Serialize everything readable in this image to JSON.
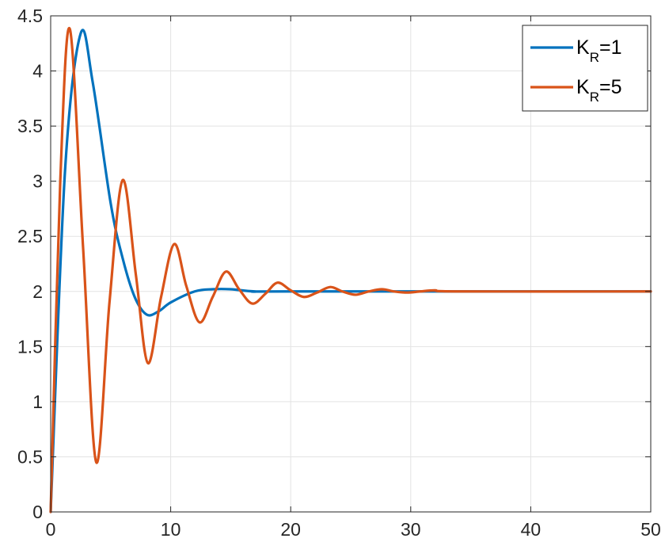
{
  "chart_data": {
    "type": "line",
    "xlim": [
      0,
      50
    ],
    "ylim": [
      0,
      4.5
    ],
    "x_ticks": [
      0,
      10,
      20,
      30,
      40,
      50
    ],
    "y_ticks": [
      0,
      0.5,
      1,
      1.5,
      2,
      2.5,
      3,
      3.5,
      4,
      4.5
    ],
    "x_tick_labels": [
      "0",
      "10",
      "20",
      "30",
      "40",
      "50"
    ],
    "y_tick_labels": [
      "0",
      "0.5",
      "1",
      "1.5",
      "2",
      "2.5",
      "3",
      "3.5",
      "4",
      "4.5"
    ],
    "grid": true,
    "legend_position": "top-right",
    "series": [
      {
        "name": "K_R=1",
        "label_main": "K",
        "label_sub": "R",
        "label_rest": "=1",
        "color": "#0072BD",
        "x": [
          0,
          1.2,
          2.5,
          3.5,
          5,
          6,
          7,
          8,
          9,
          10,
          12,
          13.5,
          15,
          17,
          20,
          50
        ],
        "y": [
          0,
          3.1,
          4.34,
          3.9,
          2.8,
          2.3,
          1.95,
          1.79,
          1.82,
          1.9,
          2.0,
          2.02,
          2.02,
          2.0,
          2.0,
          2.0
        ]
      },
      {
        "name": "K_R=5",
        "label_main": "K",
        "label_sub": "R",
        "label_rest": "=5",
        "color": "#D95319",
        "x": [
          0,
          0.8,
          1.6,
          2.7,
          3.8,
          4.9,
          6.0,
          7.1,
          8.1,
          9.2,
          10.3,
          11.3,
          12.4,
          13.5,
          14.6,
          15.7,
          16.8,
          17.9,
          18.9,
          20.0,
          21.1,
          22.2,
          23.3,
          24.3,
          25.4,
          26.5,
          27.6,
          28.6,
          29.7,
          30.8,
          32.0,
          34.0,
          50
        ],
        "y": [
          0,
          3.0,
          4.38,
          2.4,
          0.45,
          1.9,
          3.01,
          2.15,
          1.35,
          1.95,
          2.43,
          2.05,
          1.72,
          1.95,
          2.18,
          2.02,
          1.89,
          1.98,
          2.08,
          2.01,
          1.95,
          1.99,
          2.04,
          2.0,
          1.97,
          2.0,
          2.02,
          2.0,
          1.99,
          2.0,
          2.01,
          2.0,
          2.0
        ]
      }
    ]
  }
}
